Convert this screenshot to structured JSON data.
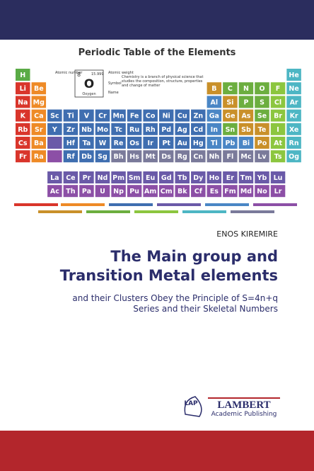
{
  "header": {
    "title": "Periodic Table of the Elements"
  },
  "key": {
    "number_label": "Atomic number",
    "number": "8",
    "weight": "15.999",
    "symbol": "O",
    "name": "Oxygen",
    "weight_label": "Atomic weight",
    "symbol_label": "Symbol",
    "name_label": "Name"
  },
  "note": "Chemistry is a branch of physical science that studies the composition, structure, properties and change of matter",
  "table": {
    "rows": [
      [
        "H",
        null,
        null,
        null,
        null,
        null,
        null,
        null,
        null,
        null,
        null,
        null,
        null,
        null,
        null,
        null,
        null,
        "He"
      ],
      [
        "Li",
        "Be",
        null,
        null,
        null,
        null,
        null,
        null,
        null,
        null,
        null,
        null,
        "B",
        "C",
        "N",
        "O",
        "F",
        "Ne"
      ],
      [
        "Na",
        "Mg",
        null,
        null,
        null,
        null,
        null,
        null,
        null,
        null,
        null,
        null,
        "Al",
        "Si",
        "P",
        "S",
        "Cl",
        "Ar"
      ],
      [
        "K",
        "Ca",
        "Sc",
        "Ti",
        "V",
        "Cr",
        "Mn",
        "Fe",
        "Co",
        "Ni",
        "Cu",
        "Zn",
        "Ga",
        "Ge",
        "As",
        "Se",
        "Br",
        "Kr"
      ],
      [
        "Rb",
        "Sr",
        "Y",
        "Zr",
        "Nb",
        "Mo",
        "Tc",
        "Ru",
        "Rh",
        "Pd",
        "Ag",
        "Cd",
        "In",
        "Sn",
        "Sb",
        "Te",
        "I",
        "Xe"
      ],
      [
        "Cs",
        "Ba",
        null,
        "Hf",
        "Ta",
        "W",
        "Re",
        "Os",
        "Ir",
        "Pt",
        "Au",
        "Hg",
        "Tl",
        "Pb",
        "Bi",
        "Po",
        "At",
        "Rn"
      ],
      [
        "Fr",
        "Ra",
        null,
        "Rf",
        "Db",
        "Sg",
        "Bh",
        "Hs",
        "Mt",
        "Ds",
        "Rg",
        "Cn",
        "Nh",
        "Fl",
        "Mc",
        "Lv",
        "Ts",
        "Og"
      ]
    ],
    "f_rows": [
      [
        "La",
        "Ce",
        "Pr",
        "Nd",
        "Pm",
        "Sm",
        "Eu",
        "Gd",
        "Tb",
        "Dy",
        "Ho",
        "Er",
        "Tm",
        "Yb",
        "Lu"
      ],
      [
        "Ac",
        "Th",
        "Pa",
        "U",
        "Np",
        "Pu",
        "Am",
        "Cm",
        "Bk",
        "Cf",
        "Es",
        "Fm",
        "Md",
        "No",
        "Lr"
      ]
    ]
  },
  "author": "ENOS KIREMIRE",
  "title_lines": [
    "The Main group and",
    "Transition Metal elements"
  ],
  "subtitle_lines": [
    "and their Clusters Obey the Principle of S=4n+q",
    "Series and their Skeletal Numbers"
  ],
  "publisher": {
    "logo": "LAP",
    "name": "LAMBERT",
    "tagline": "Academic Publishing"
  }
}
